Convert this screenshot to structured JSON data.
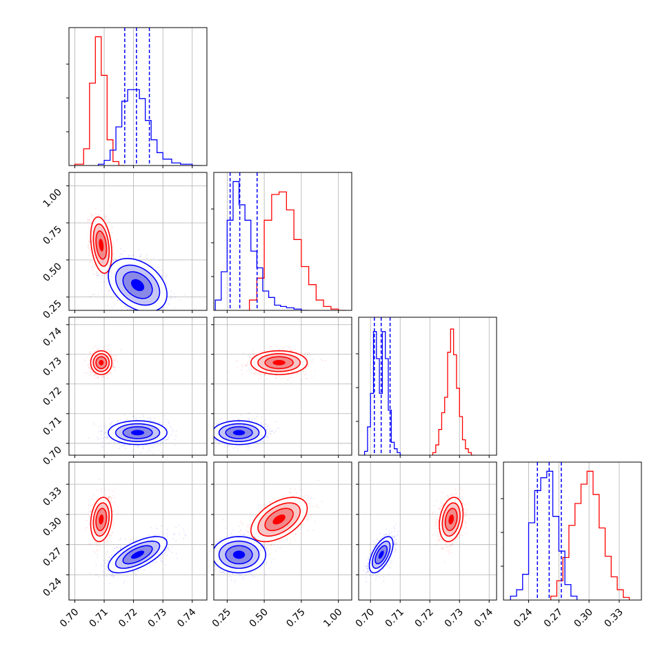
{
  "chart_data": {
    "type": "corner",
    "colors": {
      "series_a": "#ff0000",
      "series_b": "#0000ff"
    },
    "variables": [
      {
        "index": 0,
        "range": [
          0.698,
          0.745
        ],
        "ticks": [
          0.7,
          0.71,
          0.72,
          0.73,
          0.74
        ],
        "tick_labels": [
          "0.70",
          "0.71",
          "0.72",
          "0.73",
          "0.74"
        ]
      },
      {
        "index": 1,
        "range": [
          0.16,
          1.09
        ],
        "ticks": [
          0.25,
          0.5,
          0.75,
          1.0
        ],
        "tick_labels": [
          "0.25",
          "0.50",
          "0.75",
          "1.00"
        ]
      },
      {
        "index": 2,
        "range": [
          0.696,
          0.7425
        ],
        "ticks": [
          0.7,
          0.71,
          0.72,
          0.73,
          0.74
        ],
        "tick_labels": [
          "0.70",
          "0.71",
          "0.72",
          "0.73",
          "0.74"
        ]
      },
      {
        "index": 3,
        "range": [
          0.215,
          0.352
        ],
        "ticks": [
          0.24,
          0.27,
          0.3,
          0.33
        ],
        "tick_labels": [
          "0.24",
          "0.27",
          "0.30",
          "0.33"
        ]
      }
    ],
    "histograms": [
      {
        "var": 0,
        "series_a": {
          "edges": [
            0.7,
            0.703,
            0.705,
            0.707,
            0.709,
            0.711,
            0.713,
            0.715,
            0.717
          ],
          "counts": [
            1,
            13,
            64,
            100,
            70,
            20,
            3,
            0
          ]
        },
        "series_b": {
          "edges": [
            0.708,
            0.71,
            0.712,
            0.714,
            0.716,
            0.718,
            0.72,
            0.722,
            0.724,
            0.726,
            0.728,
            0.73,
            0.733,
            0.736,
            0.74,
            0.743
          ],
          "counts": [
            1,
            4,
            12,
            30,
            50,
            59,
            59,
            52,
            35,
            20,
            10,
            5,
            2,
            1,
            0
          ]
        },
        "quantile_lines": [
          0.717,
          0.721,
          0.7254
        ]
      },
      {
        "var": 1,
        "series_a": {
          "edges": [
            0.4,
            0.45,
            0.5,
            0.55,
            0.6,
            0.65,
            0.7,
            0.75,
            0.8,
            0.85,
            0.9,
            0.95,
            1.0,
            1.05
          ],
          "counts": [
            8,
            25,
            70,
            90,
            92,
            78,
            55,
            34,
            20,
            8,
            3,
            1,
            0
          ]
        },
        "series_b": {
          "edges": [
            0.17,
            0.21,
            0.25,
            0.29,
            0.33,
            0.37,
            0.41,
            0.45,
            0.49,
            0.53,
            0.57,
            0.61,
            0.65,
            0.7,
            0.75,
            0.8
          ],
          "counts": [
            8,
            30,
            70,
            100,
            82,
            70,
            46,
            33,
            15,
            10,
            4,
            3,
            2,
            1,
            0
          ]
        },
        "quantile_lines": [
          0.27,
          0.335,
          0.452
        ]
      },
      {
        "var": 2,
        "series_a": {
          "edges": [
            0.721,
            0.722,
            0.723,
            0.724,
            0.725,
            0.726,
            0.727,
            0.728,
            0.729,
            0.73,
            0.731,
            0.732,
            0.733,
            0.734,
            0.735
          ],
          "counts": [
            2,
            8,
            20,
            33,
            45,
            80,
            98,
            78,
            52,
            30,
            12,
            5,
            2,
            0
          ]
        },
        "series_b": {
          "edges": [
            0.698,
            0.699,
            0.7,
            0.701,
            0.702,
            0.703,
            0.704,
            0.705,
            0.706,
            0.707,
            0.708,
            0.709,
            0.71,
            0.711
          ],
          "counts": [
            3,
            22,
            48,
            96,
            75,
            48,
            96,
            75,
            35,
            10,
            5,
            2,
            0
          ]
        },
        "quantile_lines": [
          0.7013,
          0.7036,
          0.7066
        ]
      },
      {
        "var": 3,
        "series_a": {
          "edges": [
            0.262,
            0.268,
            0.274,
            0.28,
            0.286,
            0.292,
            0.298,
            0.304,
            0.31,
            0.316,
            0.322,
            0.328,
            0.334,
            0.34
          ],
          "counts": [
            3,
            15,
            33,
            58,
            75,
            90,
            100,
            82,
            56,
            34,
            18,
            8,
            2
          ]
        },
        "series_b": {
          "edges": [
            0.222,
            0.228,
            0.234,
            0.24,
            0.246,
            0.252,
            0.258,
            0.264,
            0.27,
            0.276,
            0.282,
            0.288
          ],
          "counts": [
            3,
            8,
            20,
            60,
            85,
            95,
            100,
            65,
            38,
            12,
            3
          ]
        },
        "quantile_lines": [
          0.2487,
          0.2604,
          0.2724
        ]
      }
    ],
    "scatter_panels": [
      {
        "x_var": 0,
        "y_var": 1,
        "series_a": {
          "mean": [
            0.709,
            0.6
          ],
          "sd": [
            0.0018,
            0.095
          ],
          "rho": -0.3
        },
        "series_b": {
          "mean": [
            0.7214,
            0.33
          ],
          "sd": [
            0.005,
            0.09
          ],
          "rho": -0.35
        }
      },
      {
        "x_var": 0,
        "y_var": 2,
        "series_a": {
          "mean": [
            0.709,
            0.7272
          ],
          "sd": [
            0.0018,
            0.002
          ],
          "rho": 0
        },
        "series_b": {
          "mean": [
            0.7214,
            0.7036
          ],
          "sd": [
            0.005,
            0.002
          ],
          "rho": 0
        }
      },
      {
        "x_var": 1,
        "y_var": 2,
        "series_a": {
          "mean": [
            0.6,
            0.7272
          ],
          "sd": [
            0.095,
            0.002
          ],
          "rho": 0
        },
        "series_b": {
          "mean": [
            0.33,
            0.7036
          ],
          "sd": [
            0.09,
            0.002
          ],
          "rho": 0
        }
      },
      {
        "x_var": 0,
        "y_var": 3,
        "series_a": {
          "mean": [
            0.709,
            0.295
          ],
          "sd": [
            0.0018,
            0.011
          ],
          "rho": 0.2
        },
        "series_b": {
          "mean": [
            0.7214,
            0.26
          ],
          "sd": [
            0.005,
            0.009
          ],
          "rho": 0.65
        }
      },
      {
        "x_var": 1,
        "y_var": 3,
        "series_a": {
          "mean": [
            0.6,
            0.295
          ],
          "sd": [
            0.095,
            0.011
          ],
          "rho": 0.5
        },
        "series_b": {
          "mean": [
            0.33,
            0.26
          ],
          "sd": [
            0.09,
            0.009
          ],
          "rho": 0
        }
      },
      {
        "x_var": 2,
        "y_var": 3,
        "series_a": {
          "mean": [
            0.7272,
            0.295
          ],
          "sd": [
            0.002,
            0.011
          ],
          "rho": 0.25
        },
        "series_b": {
          "mean": [
            0.7036,
            0.26
          ],
          "sd": [
            0.002,
            0.009
          ],
          "rho": 0.6
        }
      }
    ],
    "grid": true,
    "legend": "none",
    "title": "",
    "axis_labels": [
      "",
      "",
      "",
      ""
    ]
  }
}
